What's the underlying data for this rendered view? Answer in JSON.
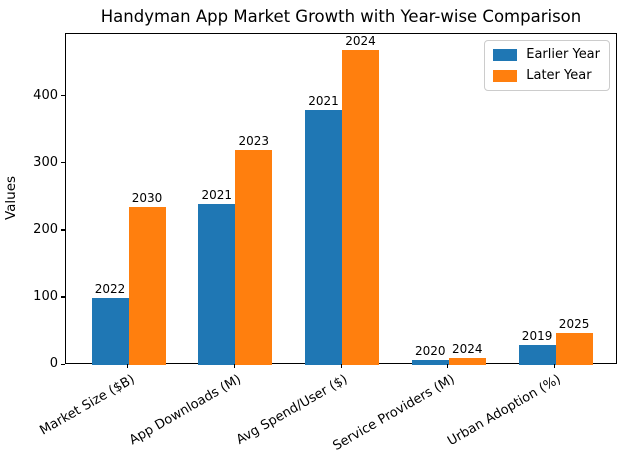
{
  "title": "Handyman App Market Growth with Year-wise Comparison",
  "ylabel": "Values",
  "legend": {
    "items": [
      {
        "label": "Earlier Year",
        "color": "#1f77b4"
      },
      {
        "label": "Later Year",
        "color": "#ff7f0e"
      }
    ]
  },
  "chart_data": {
    "type": "bar",
    "title": "Handyman App Market Growth with Year-wise Comparison",
    "xlabel": "",
    "ylabel": "Values",
    "categories": [
      "Market Size ($B)",
      "App Downloads (M)",
      "Avg Spend/User ($)",
      "Service Providers (M)",
      "Urban Adoption (%)"
    ],
    "series": [
      {
        "name": "Earlier Year",
        "color": "#1f77b4",
        "values": [
          100,
          240,
          380,
          8,
          30
        ],
        "bar_labels": [
          "2022",
          "2021",
          "2021",
          "2020",
          "2019"
        ]
      },
      {
        "name": "Later Year",
        "color": "#ff7f0e",
        "values": [
          235,
          320,
          470,
          10,
          47
        ],
        "bar_labels": [
          "2030",
          "2023",
          "2024",
          "2024",
          "2025"
        ]
      }
    ],
    "ylim": [
      0,
      493.5
    ],
    "yticks": [
      0,
      100,
      200,
      300,
      400
    ],
    "xtick_rotation": 30,
    "grid": false,
    "legend_position": "upper right"
  }
}
